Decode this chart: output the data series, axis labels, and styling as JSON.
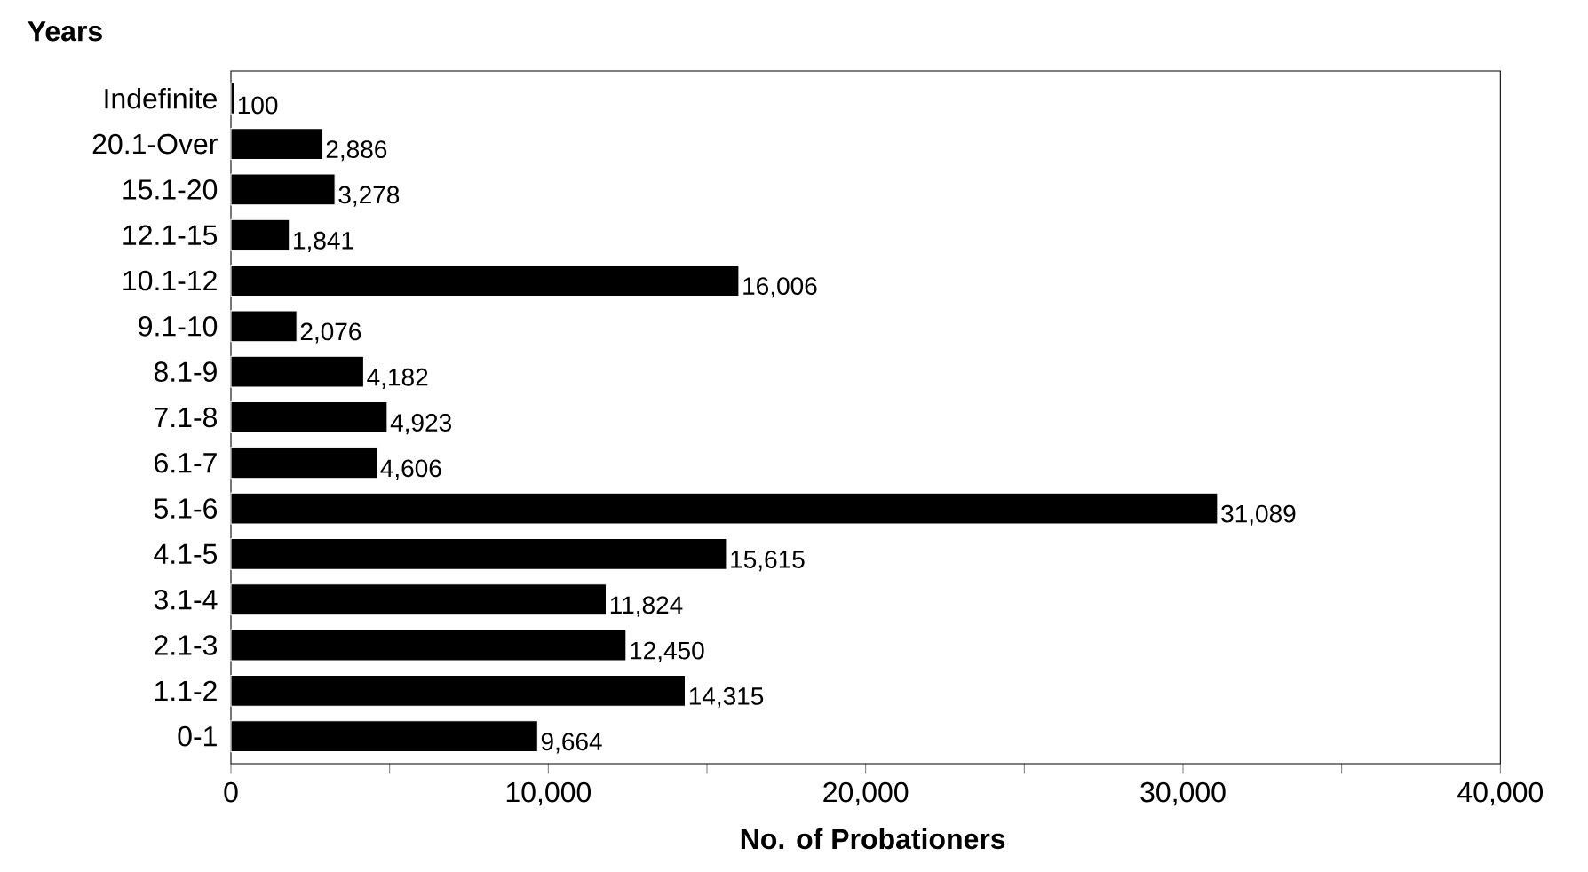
{
  "chart_data": {
    "type": "bar",
    "orientation": "horizontal",
    "ylabel": "Years",
    "xlabel": "No. of Probationers",
    "categories": [
      "Indefinite",
      "20.1-Over",
      "15.1-20",
      "12.1-15",
      "10.1-12",
      "9.1-10",
      "8.1-9",
      "7.1-8",
      "6.1-7",
      "5.1-6",
      "4.1-5",
      "3.1-4",
      "2.1-3",
      "1.1-2",
      "0-1"
    ],
    "values": [
      100,
      2886,
      3278,
      1841,
      16006,
      2076,
      4182,
      4923,
      4606,
      31089,
      15615,
      11824,
      12450,
      14315,
      9664
    ],
    "value_labels": [
      "100",
      "2,886",
      "3,278",
      "1,841",
      "16,006",
      "2,076",
      "4,182",
      "4,923",
      "4,606",
      "31,089",
      "15,615",
      "11,824",
      "12,450",
      "14,315",
      "9,664"
    ],
    "color": "#000000",
    "xlim": [
      0,
      40000
    ],
    "xticks": [
      0,
      {
        "value": 5000,
        "label": null
      },
      {
        "value": 10000,
        "label": "10,000"
      },
      {
        "value": 15000,
        "label": null
      },
      {
        "value": 20000,
        "label": "20,000"
      },
      {
        "value": 25000,
        "label": null
      },
      {
        "value": 30000,
        "label": "30,000"
      },
      {
        "value": 35000,
        "label": null
      },
      {
        "value": 40000,
        "label": "40,000"
      }
    ],
    "grid": false
  }
}
